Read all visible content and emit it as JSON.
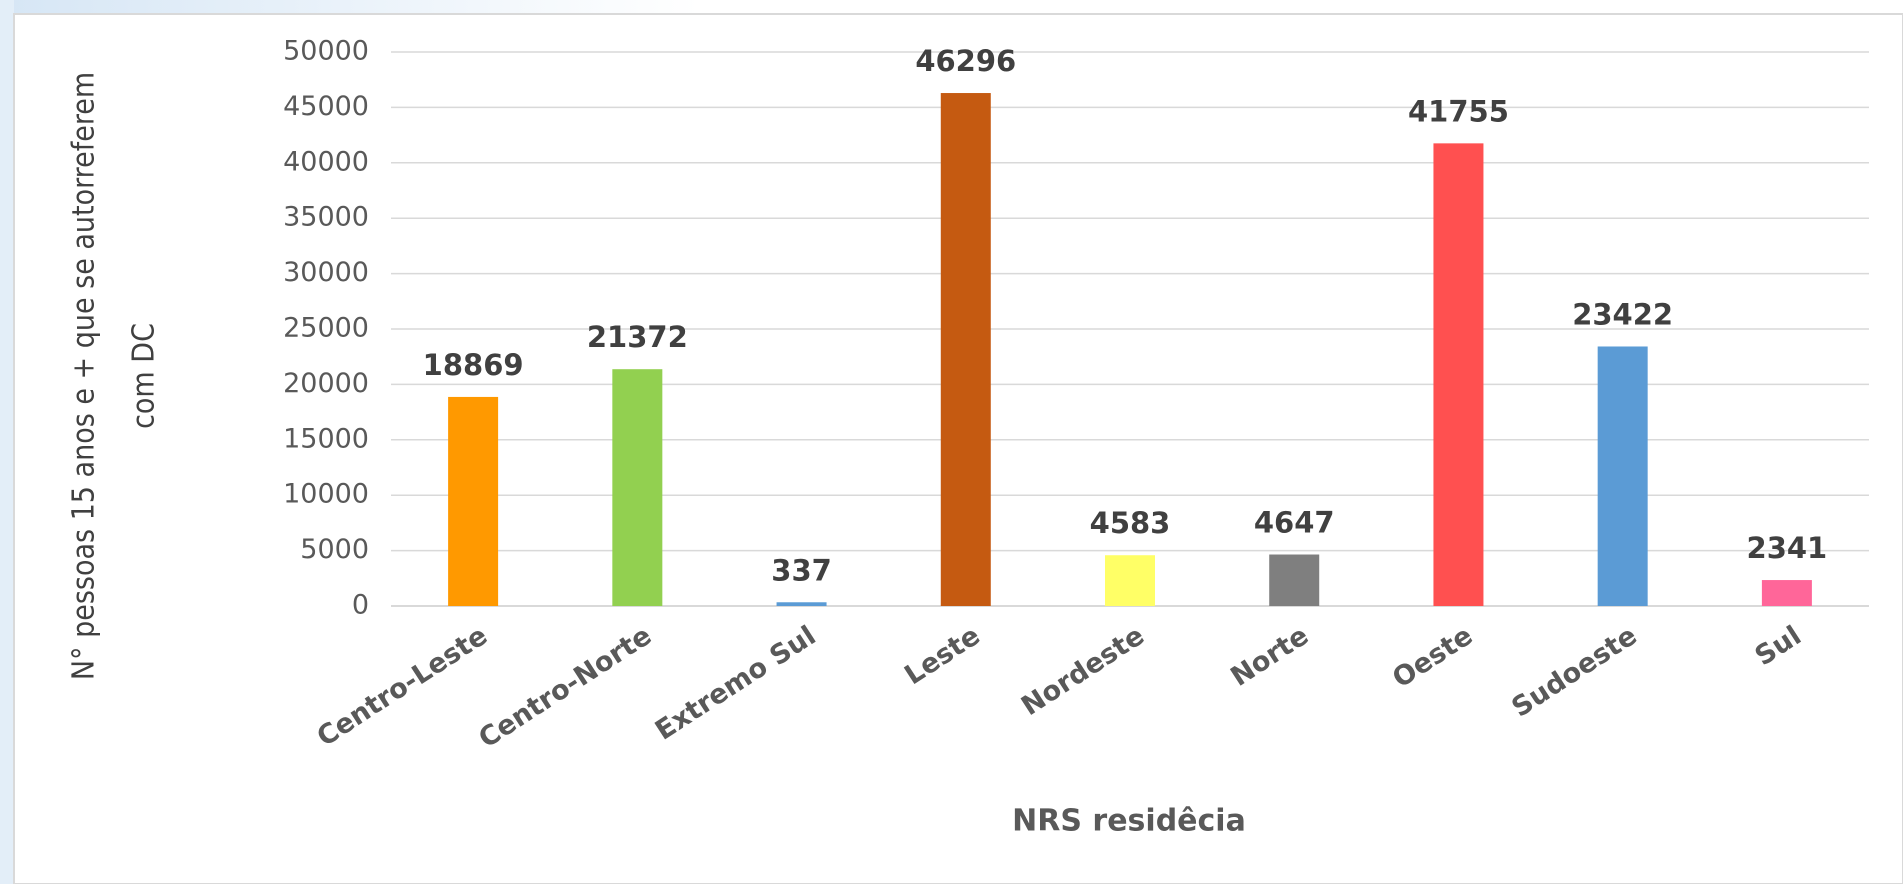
{
  "chart_data": {
    "type": "bar",
    "categories": [
      "Centro-Leste",
      "Centro-Norte",
      "Extremo Sul",
      "Leste",
      "Nordeste",
      "Norte",
      "Oeste",
      "Sudoeste",
      "Sul"
    ],
    "values": [
      18869,
      21372,
      337,
      46296,
      4583,
      4647,
      41755,
      23422,
      2341
    ],
    "colors": [
      "#ff9900",
      "#92d050",
      "#5b9bd5",
      "#c55a11",
      "#ffff66",
      "#7f7f7f",
      "#ff5050",
      "#5b9bd5",
      "#ff6699"
    ],
    "ylim": [
      0,
      50000
    ],
    "yticks": [
      0,
      5000,
      10000,
      15000,
      20000,
      25000,
      30000,
      35000,
      40000,
      45000,
      50000
    ],
    "grid": true,
    "xlabel": "NRS residêcia",
    "ylabel": [
      "N° pessoas 15 anos e + que se autorreferem",
      "com DC"
    ]
  }
}
